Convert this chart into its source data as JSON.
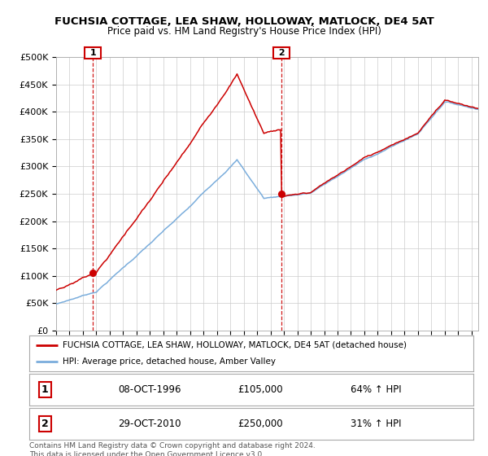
{
  "title": "FUCHSIA COTTAGE, LEA SHAW, HOLLOWAY, MATLOCK, DE4 5AT",
  "subtitle": "Price paid vs. HM Land Registry's House Price Index (HPI)",
  "ylim": [
    0,
    500000
  ],
  "yticks": [
    0,
    50000,
    100000,
    150000,
    200000,
    250000,
    300000,
    350000,
    400000,
    450000,
    500000
  ],
  "ytick_labels": [
    "£0",
    "£50K",
    "£100K",
    "£150K",
    "£200K",
    "£250K",
    "£300K",
    "£350K",
    "£400K",
    "£450K",
    "£500K"
  ],
  "hpi_color": "#7aaddc",
  "price_color": "#cc0000",
  "sale1_date_label": "08-OCT-1996",
  "sale1_price": 105000,
  "sale1_pct": "64% ↑ HPI",
  "sale1_x": 1996.77,
  "sale2_date_label": "29-OCT-2010",
  "sale2_price": 250000,
  "sale2_pct": "31% ↑ HPI",
  "sale2_x": 2010.83,
  "legend_property": "FUCHSIA COTTAGE, LEA SHAW, HOLLOWAY, MATLOCK, DE4 5AT (detached house)",
  "legend_hpi": "HPI: Average price, detached house, Amber Valley",
  "footnote": "Contains HM Land Registry data © Crown copyright and database right 2024.\nThis data is licensed under the Open Government Licence v3.0.",
  "background_color": "#ffffff",
  "grid_color": "#cccccc",
  "xlim_start": 1994,
  "xlim_end": 2025.5
}
